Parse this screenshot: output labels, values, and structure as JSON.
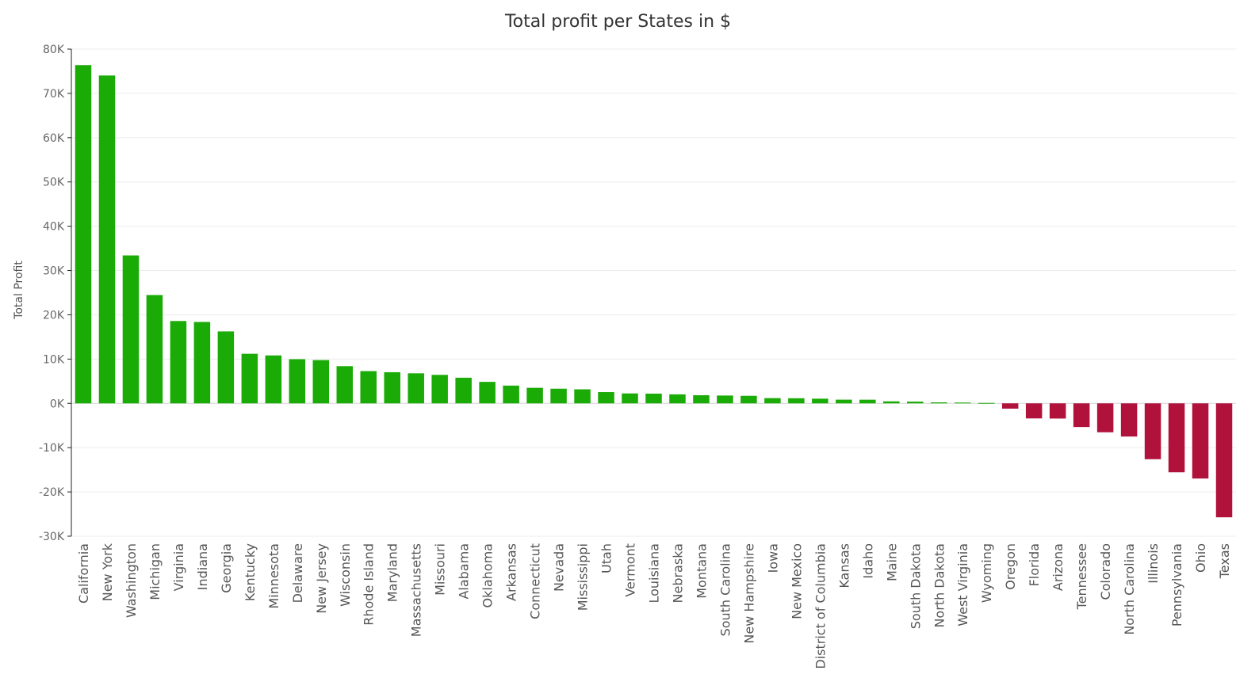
{
  "colors": {
    "positive": "#1aab06",
    "negative": "#b0123c"
  },
  "chart_data": {
    "type": "bar",
    "title": "Total profit per States in $",
    "xlabel": "",
    "ylabel": "Total Profit",
    "ylim": [
      -30000,
      80000
    ],
    "yticks": [
      80000,
      70000,
      60000,
      50000,
      40000,
      30000,
      20000,
      10000,
      0,
      -10000,
      -20000,
      -30000
    ],
    "ytick_labels": [
      "80K",
      "70K",
      "60K",
      "50K",
      "40K",
      "30K",
      "20K",
      "10K",
      "0K",
      "-10K",
      "-20K",
      "-30K"
    ],
    "grid": true,
    "legend": "none",
    "categories": [
      "California",
      "New York",
      "Washington",
      "Michigan",
      "Virginia",
      "Indiana",
      "Georgia",
      "Kentucky",
      "Minnesota",
      "Delaware",
      "New Jersey",
      "Wisconsin",
      "Rhode Island",
      "Maryland",
      "Massachusetts",
      "Missouri",
      "Alabama",
      "Oklahoma",
      "Arkansas",
      "Connecticut",
      "Nevada",
      "Mississippi",
      "Utah",
      "Vermont",
      "Louisiana",
      "Nebraska",
      "Montana",
      "South Carolina",
      "New Hampshire",
      "Iowa",
      "New Mexico",
      "District of Columbia",
      "Kansas",
      "Idaho",
      "Maine",
      "South Dakota",
      "North Dakota",
      "West Virginia",
      "Wyoming",
      "Oregon",
      "Florida",
      "Arizona",
      "Tennessee",
      "Colorado",
      "North Carolina",
      "Illinois",
      "Pennsylvania",
      "Ohio",
      "Texas"
    ],
    "values": [
      76381,
      74039,
      33403,
      24463,
      18598,
      18383,
      16250,
      11200,
      10823,
      9977,
      9773,
      8402,
      7286,
      7031,
      6786,
      6436,
      5787,
      4854,
      4009,
      3511,
      3317,
      3173,
      2547,
      2245,
      2196,
      2037,
      1834,
      1769,
      1707,
      1184,
      1157,
      1060,
      836,
      827,
      454,
      395,
      230,
      186,
      100,
      -1191,
      -3399,
      -3428,
      -5342,
      -6528,
      -7491,
      -12608,
      -15560,
      -16971,
      -25729
    ]
  }
}
